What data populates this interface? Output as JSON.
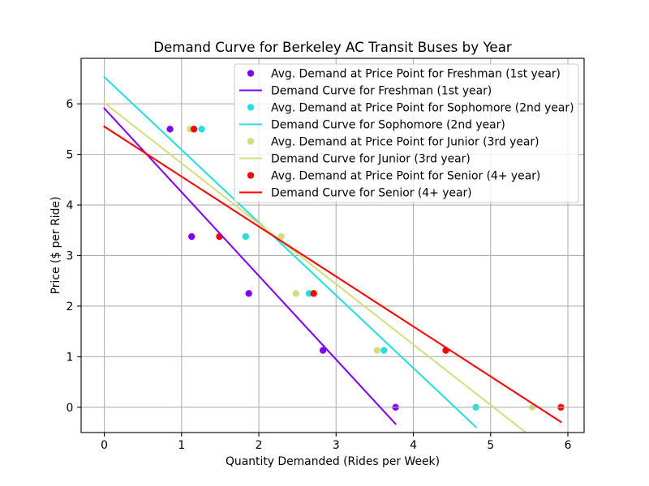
{
  "chart_data": {
    "type": "scatter",
    "title": "Demand Curve for Berkeley AC Transit Buses by Year",
    "xlabel": "Quantity Demanded (Rides per Week)",
    "ylabel": "Price ($ per Ride)",
    "xlim": [
      -0.3,
      6.21
    ],
    "ylim": [
      -0.5,
      6.9
    ],
    "xticks": [
      0,
      1,
      2,
      3,
      4,
      5,
      6
    ],
    "yticks": [
      0,
      1,
      2,
      3,
      4,
      5,
      6
    ],
    "grid": true,
    "legend_position": "top-right",
    "series": [
      {
        "name": "Avg. Demand at Price Point for Freshman (1st year)",
        "type": "scatter",
        "color": "#8000ff",
        "x": [
          0.85,
          1.13,
          1.87,
          2.83,
          3.77
        ],
        "y": [
          5.5,
          3.375,
          2.25,
          1.125,
          0
        ]
      },
      {
        "name": "Demand Curve for Freshman (1st year)",
        "type": "line",
        "color": "#8000ff",
        "x": [
          0,
          3.77
        ],
        "y": [
          5.91,
          -0.33
        ]
      },
      {
        "name": "Avg. Demand at Price Point for Sophomore (2nd year)",
        "type": "scatter",
        "color": "#2adddd",
        "x": [
          1.26,
          1.83,
          2.65,
          3.62,
          4.81
        ],
        "y": [
          5.5,
          3.375,
          2.25,
          1.125,
          0
        ]
      },
      {
        "name": "Demand Curve for Sophomore (2nd year)",
        "type": "line",
        "color": "#2adddd",
        "x": [
          0,
          4.81
        ],
        "y": [
          6.53,
          -0.39
        ]
      },
      {
        "name": "Avg. Demand at Price Point for Junior (3rd year)",
        "type": "scatter",
        "color": "#d4dd80",
        "x": [
          1.11,
          2.29,
          2.48,
          3.53,
          5.54
        ],
        "y": [
          5.5,
          3.375,
          2.25,
          1.125,
          0
        ]
      },
      {
        "name": "Demand Curve for Junior (3rd year)",
        "type": "line",
        "color": "#d4dd80",
        "x": [
          0,
          5.54
        ],
        "y": [
          6.02,
          -0.6
        ]
      },
      {
        "name": "Avg. Demand at Price Point for Senior (4+ year)",
        "type": "scatter",
        "color": "#ff0000",
        "x": [
          1.16,
          1.49,
          2.71,
          4.42,
          5.91
        ],
        "y": [
          5.5,
          3.375,
          2.25,
          1.125,
          0
        ]
      },
      {
        "name": "Demand Curve for Senior (4+ year)",
        "type": "line",
        "color": "#ff0000",
        "x": [
          0,
          5.91
        ],
        "y": [
          5.55,
          -0.29
        ]
      }
    ]
  }
}
